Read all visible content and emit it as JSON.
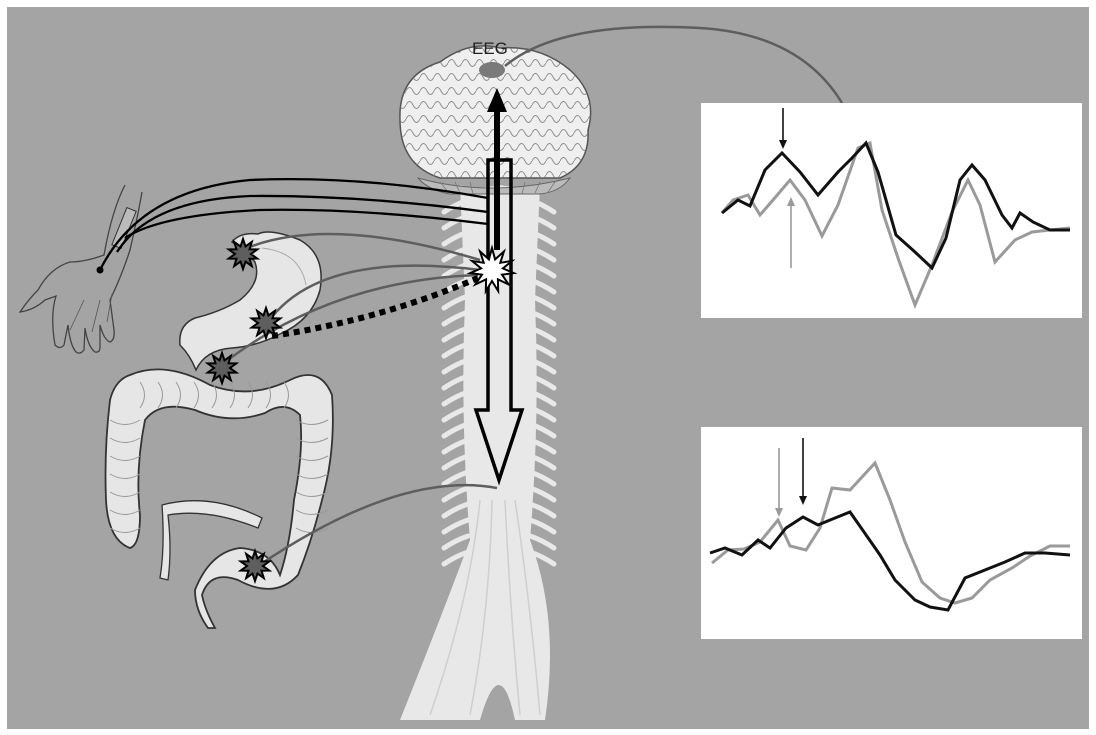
{
  "labels": {
    "eeg": "EEG"
  },
  "colors": {
    "background": "#a4a4a4",
    "panel": "#ffffff",
    "trace_dark": "#111111",
    "trace_light": "#9a9a9a",
    "connector": "#5e5e5e",
    "spinal_cord": "#e8e8e8"
  },
  "icons": [
    "brain-icon",
    "spinal-cord-icon",
    "hand-icon",
    "stomach-icon",
    "colon-icon",
    "stimulus-burst-icon",
    "electrode-icon"
  ]
}
